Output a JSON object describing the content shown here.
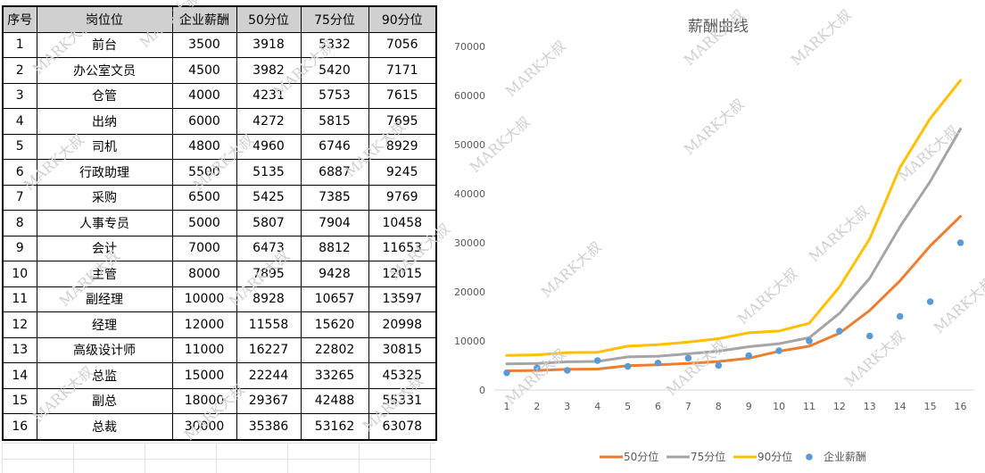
{
  "table": {
    "headers": [
      "序号",
      "岗位位",
      "企业薪酬",
      "50分位",
      "75分位",
      "90分位"
    ],
    "rows": [
      [
        "1",
        "前台",
        "3500",
        "3918",
        "5332",
        "7056"
      ],
      [
        "2",
        "办公室文员",
        "4500",
        "3982",
        "5420",
        "7171"
      ],
      [
        "3",
        "仓管",
        "4000",
        "4231",
        "5753",
        "7615"
      ],
      [
        "4",
        "出纳",
        "6000",
        "4272",
        "5815",
        "7695"
      ],
      [
        "5",
        "司机",
        "4800",
        "4960",
        "6746",
        "8929"
      ],
      [
        "6",
        "行政助理",
        "5500",
        "5135",
        "6887",
        "9245"
      ],
      [
        "7",
        "采购",
        "6500",
        "5425",
        "7385",
        "9769"
      ],
      [
        "8",
        "人事专员",
        "5000",
        "5807",
        "7904",
        "10458"
      ],
      [
        "9",
        "会计",
        "7000",
        "6473",
        "8812",
        "11653"
      ],
      [
        "10",
        "主管",
        "8000",
        "7895",
        "9428",
        "12015"
      ],
      [
        "11",
        "副经理",
        "10000",
        "8928",
        "10657",
        "13597"
      ],
      [
        "12",
        "经理",
        "12000",
        "11558",
        "15620",
        "20998"
      ],
      [
        "13",
        "高级设计师",
        "11000",
        "16227",
        "22802",
        "30815"
      ],
      [
        "14",
        "总监",
        "15000",
        "22244",
        "33265",
        "45325"
      ],
      [
        "15",
        "副总",
        "18000",
        "29367",
        "42488",
        "55331"
      ],
      [
        "16",
        "总裁",
        "30000",
        "35386",
        "53162",
        "63078"
      ]
    ]
  },
  "watermark": "MARK大叔",
  "chart_data": {
    "type": "line",
    "title": "薪酬曲线",
    "categories": [
      "1",
      "2",
      "3",
      "4",
      "5",
      "6",
      "7",
      "8",
      "9",
      "10",
      "11",
      "12",
      "13",
      "14",
      "15",
      "16"
    ],
    "ylim": [
      0,
      70000
    ],
    "yticks": [
      "0",
      "10000",
      "20000",
      "30000",
      "40000",
      "50000",
      "60000",
      "70000"
    ],
    "ytick_values": [
      0,
      10000,
      20000,
      30000,
      40000,
      50000,
      60000,
      70000
    ],
    "legend_position": "bottom",
    "series": [
      {
        "name": "50分位",
        "kind": "line",
        "color": "#ed7d31",
        "values": [
          3918,
          3982,
          4231,
          4272,
          4960,
          5135,
          5425,
          5807,
          6473,
          7895,
          8928,
          11558,
          16227,
          22244,
          29367,
          35386
        ]
      },
      {
        "name": "75分位",
        "kind": "line",
        "color": "#a5a5a5",
        "values": [
          5332,
          5420,
          5753,
          5815,
          6746,
          6887,
          7385,
          7904,
          8812,
          9428,
          10657,
          15620,
          22802,
          33265,
          42488,
          53162
        ]
      },
      {
        "name": "90分位",
        "kind": "line",
        "color": "#ffc000",
        "values": [
          7056,
          7171,
          7615,
          7695,
          8929,
          9245,
          9769,
          10458,
          11653,
          12015,
          13597,
          20998,
          30815,
          45325,
          55331,
          63078
        ]
      },
      {
        "name": "企业薪酬",
        "kind": "scatter",
        "color": "#5b9bd5",
        "values": [
          3500,
          4500,
          4000,
          6000,
          4800,
          5500,
          6500,
          5000,
          7000,
          8000,
          10000,
          12000,
          11000,
          15000,
          18000,
          30000
        ]
      }
    ]
  }
}
